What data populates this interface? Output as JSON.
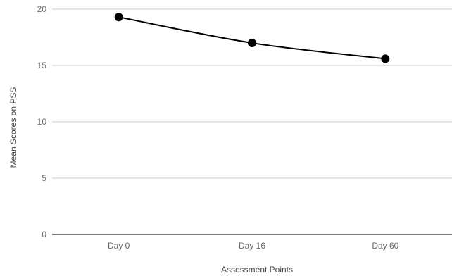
{
  "chart_data": {
    "type": "line",
    "categories": [
      "Day 0",
      "Day 16",
      "Day 60"
    ],
    "series": [
      {
        "values": [
          19.3,
          17.0,
          15.6
        ]
      }
    ],
    "title": "",
    "xlabel": "Assessment Points",
    "ylabel": "Mean Scores on PSS",
    "ylim": [
      0,
      20
    ],
    "yticks": [
      0,
      5,
      10,
      15,
      20
    ],
    "grid": true,
    "legend": "none",
    "colors": {
      "line": "#000000",
      "marker": "#000000",
      "grid": "#cccccc",
      "baseline": "#333333",
      "tick_text": "#666666",
      "axis_title_text": "#444444"
    }
  }
}
